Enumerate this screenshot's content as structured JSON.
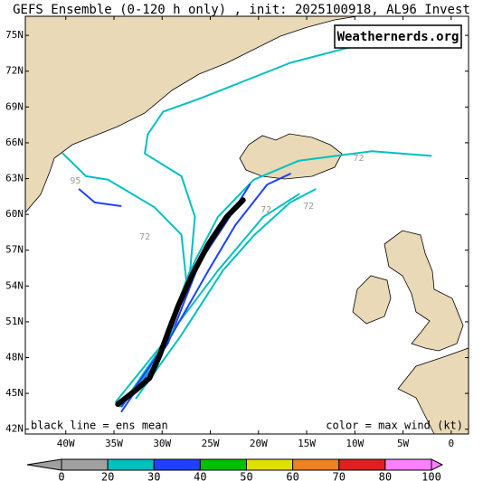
{
  "title": "GEFS Ensemble (0-120 h only) , init: 2025100918, AL96 Invest",
  "watermark": "Weathernerds.org",
  "chart_data": {
    "type": "map",
    "xlim": [
      -44.2,
      1.8
    ],
    "ylim": [
      41.6,
      76.6
    ],
    "xticks": [
      {
        "value": -40,
        "label": "40W"
      },
      {
        "value": -35,
        "label": "35W"
      },
      {
        "value": -30,
        "label": "30W"
      },
      {
        "value": -25,
        "label": "25W"
      },
      {
        "value": -20,
        "label": "20W"
      },
      {
        "value": -15,
        "label": "15W"
      },
      {
        "value": -10,
        "label": "10W"
      },
      {
        "value": -5,
        "label": "5W"
      },
      0
    ],
    "yticks": [
      {
        "value": 75,
        "label": "75N"
      },
      {
        "value": 72,
        "label": "72N"
      },
      {
        "value": 69,
        "label": "69N"
      },
      {
        "value": 66,
        "label": "66N"
      },
      {
        "value": 63,
        "label": "63N"
      },
      {
        "value": 60,
        "label": "60N"
      },
      {
        "value": 57,
        "label": "57N"
      },
      {
        "value": 54,
        "label": "54N"
      },
      {
        "value": 51,
        "label": "51N"
      },
      {
        "value": 48,
        "label": "48N"
      },
      {
        "value": 45,
        "label": "45N"
      },
      {
        "value": 42,
        "label": "42N"
      }
    ],
    "members": [
      {
        "color": "#00c0c0",
        "lon": [
          -34.4,
          -30.4,
          -28.5,
          -26.6,
          -24.2,
          -20.5,
          -15.8,
          -8.2,
          -2.1
        ],
        "lat": [
          43.9,
          47.7,
          52.3,
          56.1,
          59.8,
          62.9,
          64.5,
          65.3,
          64.9
        ]
      },
      {
        "color": "#00c0c0",
        "lon": [
          -34.8,
          -29.9,
          -27.1,
          -26.6,
          -28.0,
          -31.8,
          -31.5,
          -29.9,
          -26.1,
          -16.7,
          -9.6
        ],
        "lat": [
          44.3,
          49.2,
          55.3,
          59.8,
          63.2,
          65.1,
          66.7,
          68.6,
          69.7,
          72.7,
          74.2
        ]
      },
      {
        "color": "#2040ff",
        "lon": [
          -34.2,
          -29.4,
          -26.1,
          -23.3,
          -20.9
        ],
        "lat": [
          43.5,
          49.2,
          56.0,
          59.4,
          62.5
        ]
      },
      {
        "color": "#00c0c0",
        "lon": [
          -34.2,
          -29.9,
          -27.5,
          -28.0,
          -30.8,
          -35.6,
          -37.9,
          -40.3
        ],
        "lat": [
          43.9,
          48.5,
          54.5,
          58.3,
          60.6,
          62.9,
          63.2,
          65.1
        ]
      },
      {
        "color": "#2040ff",
        "lon": [
          -38.6,
          -37.0,
          -34.3
        ],
        "lat": [
          62.1,
          61.0,
          60.7
        ]
      },
      {
        "color": "#00c0c0",
        "lon": [
          -33.7,
          -28.5,
          -24.2,
          -19.5,
          -15.8
        ],
        "lat": [
          44.6,
          50.7,
          55.3,
          59.8,
          61.7
        ]
      },
      {
        "color": "#2040ff",
        "lon": [
          -34.2,
          -29.0,
          -25.2,
          -22.4,
          -19.1,
          -16.7
        ],
        "lat": [
          43.9,
          49.9,
          55.3,
          59.1,
          62.5,
          63.4
        ]
      },
      {
        "color": "#00c0c0",
        "lon": [
          -32.7,
          -28.0,
          -23.7,
          -20.4,
          -16.7,
          -14.1
        ],
        "lat": [
          44.6,
          49.9,
          55.3,
          58.3,
          61.0,
          62.1
        ]
      }
    ],
    "mean_track": {
      "lon": [
        -34.6,
        -32.7,
        -31.3,
        -30.3,
        -29.3,
        -28.3,
        -26.9,
        -25.2,
        -23.3,
        -21.6
      ],
      "lat": [
        44.1,
        45.3,
        46.3,
        48.1,
        50.3,
        52.4,
        54.9,
        57.5,
        59.8,
        61.2
      ]
    },
    "annotations": [
      {
        "text": "95",
        "lon": -39.0,
        "lat": 62.8
      },
      {
        "text": "72",
        "lon": -31.8,
        "lat": 58.1
      },
      {
        "text": "72",
        "lon": -14.8,
        "lat": 60.7
      },
      {
        "text": "72",
        "lon": -19.2,
        "lat": 60.4
      },
      {
        "text": "72",
        "lon": -9.6,
        "lat": 64.7
      }
    ],
    "left_note": "black line = ens mean",
    "right_note": "color = max wind (kt)",
    "colorbar": {
      "ticks": [
        0,
        20,
        30,
        40,
        50,
        60,
        70,
        80,
        100
      ],
      "colors": [
        "#a0a0a0",
        "#00c0c0",
        "#2040ff",
        "#00c000",
        "#e0e000",
        "#f08020",
        "#e02020",
        "#ff80ff"
      ]
    }
  }
}
